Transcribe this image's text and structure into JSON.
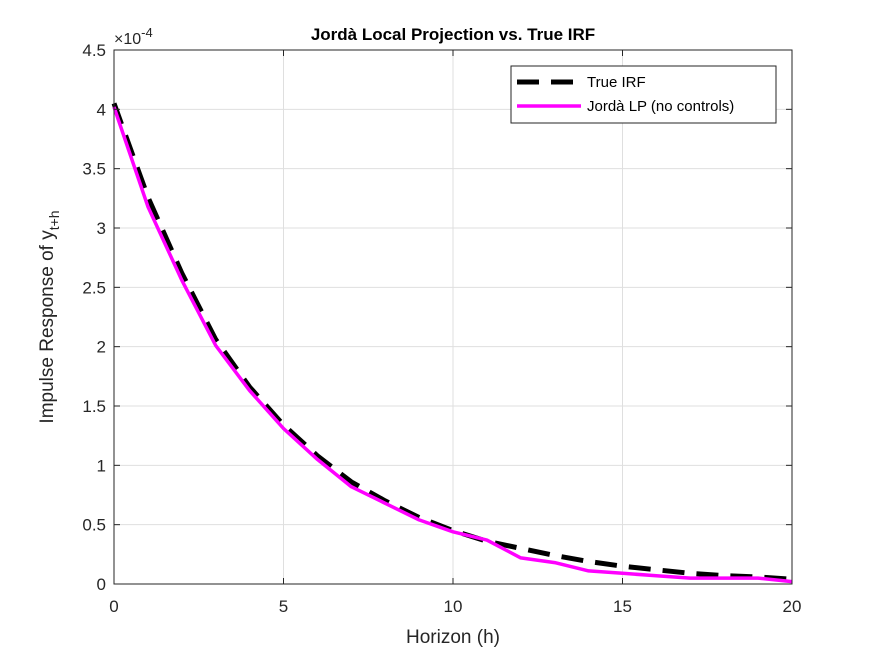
{
  "chart_data": {
    "type": "line",
    "title": "Jordà Local Projection vs. True IRF",
    "xlabel": "Horizon (h)",
    "ylabel_main": "Impulse Response of y",
    "ylabel_subscript": "t+h",
    "y_exponent_base": "×10",
    "y_exponent_power": "-4",
    "xlim": [
      0,
      20
    ],
    "ylim": [
      0,
      4.5
    ],
    "x_ticks": [
      "0",
      "5",
      "10",
      "15",
      "20"
    ],
    "y_ticks": [
      "0",
      "0.5",
      "1",
      "1.5",
      "2",
      "2.5",
      "3",
      "3.5",
      "4",
      "4.5"
    ],
    "grid": true,
    "legend_position": "top-right",
    "x": [
      0,
      1,
      2,
      3,
      4,
      5,
      6,
      7,
      8,
      9,
      10,
      11,
      12,
      13,
      14,
      15,
      16,
      17,
      18,
      19,
      20
    ],
    "series": [
      {
        "name": "True IRF",
        "color": "#000000",
        "style": "dashed",
        "values": [
          4.05,
          3.26,
          2.62,
          2.06,
          1.66,
          1.34,
          1.08,
          0.86,
          0.7,
          0.56,
          0.45,
          0.36,
          0.3,
          0.24,
          0.19,
          0.15,
          0.12,
          0.09,
          0.07,
          0.06,
          0.04
        ]
      },
      {
        "name": "Jordà LP (no controls)",
        "color": "#ff00ff",
        "style": "solid",
        "values": [
          4.02,
          3.18,
          2.56,
          2.01,
          1.63,
          1.31,
          1.05,
          0.82,
          0.68,
          0.54,
          0.44,
          0.37,
          0.22,
          0.18,
          0.11,
          0.09,
          0.07,
          0.05,
          0.05,
          0.05,
          0.02
        ]
      }
    ]
  }
}
